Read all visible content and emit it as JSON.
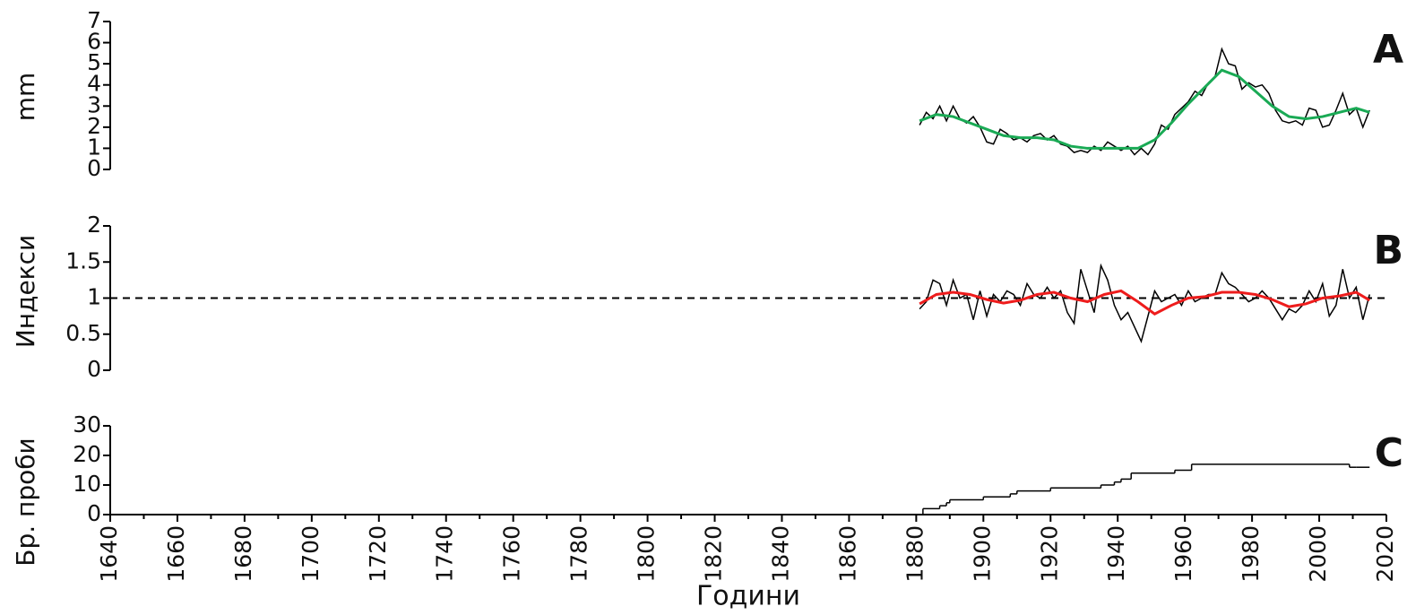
{
  "chart_data": [
    {
      "type": "line",
      "panel_label": "A",
      "ylabel": "mm",
      "xlim": [
        1640,
        2020
      ],
      "ylim": [
        0,
        7
      ],
      "yticks": [
        0,
        1,
        2,
        3,
        4,
        5,
        6,
        7
      ],
      "series": [
        {
          "color": "#000000",
          "x": [
            1881,
            1883,
            1885,
            1887,
            1889,
            1891,
            1893,
            1895,
            1897,
            1899,
            1901,
            1903,
            1905,
            1907,
            1909,
            1911,
            1913,
            1915,
            1917,
            1919,
            1921,
            1923,
            1925,
            1927,
            1929,
            1931,
            1933,
            1935,
            1937,
            1939,
            1941,
            1943,
            1945,
            1947,
            1949,
            1951,
            1953,
            1955,
            1957,
            1959,
            1961,
            1963,
            1965,
            1967,
            1969,
            1971,
            1973,
            1975,
            1977,
            1979,
            1981,
            1983,
            1985,
            1987,
            1989,
            1991,
            1993,
            1995,
            1997,
            1999,
            2001,
            2003,
            2005,
            2007,
            2009,
            2011,
            2013,
            2015
          ],
          "values": [
            2.1,
            2.7,
            2.4,
            3.0,
            2.3,
            3.0,
            2.4,
            2.2,
            2.5,
            2.0,
            1.3,
            1.2,
            1.9,
            1.7,
            1.4,
            1.5,
            1.3,
            1.6,
            1.7,
            1.4,
            1.6,
            1.2,
            1.1,
            0.8,
            0.9,
            0.8,
            1.1,
            0.9,
            1.3,
            1.1,
            0.9,
            1.1,
            0.7,
            1.0,
            0.7,
            1.2,
            2.1,
            1.9,
            2.6,
            2.9,
            3.2,
            3.7,
            3.5,
            4.1,
            4.4,
            5.7,
            5.0,
            4.9,
            3.8,
            4.1,
            3.9,
            4.0,
            3.6,
            2.8,
            2.3,
            2.2,
            2.3,
            2.1,
            2.9,
            2.8,
            2.0,
            2.1,
            2.8,
            3.6,
            2.6,
            2.9,
            2.0,
            2.8
          ]
        },
        {
          "color": "#1aaa55",
          "x": [
            1881,
            1886,
            1891,
            1896,
            1901,
            1906,
            1911,
            1916,
            1921,
            1926,
            1931,
            1936,
            1941,
            1946,
            1951,
            1956,
            1961,
            1966,
            1971,
            1976,
            1981,
            1986,
            1991,
            1996,
            2001,
            2006,
            2011,
            2015
          ],
          "values": [
            2.3,
            2.6,
            2.5,
            2.2,
            1.9,
            1.6,
            1.5,
            1.5,
            1.4,
            1.1,
            1.0,
            1.0,
            1.0,
            1.0,
            1.4,
            2.2,
            3.1,
            3.9,
            4.7,
            4.4,
            3.7,
            3.0,
            2.5,
            2.4,
            2.5,
            2.7,
            2.9,
            2.7
          ]
        }
      ]
    },
    {
      "type": "line",
      "panel_label": "B",
      "ylabel": "Индекси",
      "xlim": [
        1640,
        2020
      ],
      "ylim": [
        0,
        2
      ],
      "yticks": [
        0,
        0.5,
        1,
        1.5,
        2
      ],
      "reference_line": 1,
      "series": [
        {
          "color": "#000000",
          "x": [
            1881,
            1883,
            1885,
            1887,
            1889,
            1891,
            1893,
            1895,
            1897,
            1899,
            1901,
            1903,
            1905,
            1907,
            1909,
            1911,
            1913,
            1915,
            1917,
            1919,
            1921,
            1923,
            1925,
            1927,
            1929,
            1931,
            1933,
            1935,
            1937,
            1939,
            1941,
            1943,
            1945,
            1947,
            1949,
            1951,
            1953,
            1955,
            1957,
            1959,
            1961,
            1963,
            1965,
            1967,
            1969,
            1971,
            1973,
            1975,
            1977,
            1979,
            1981,
            1983,
            1985,
            1987,
            1989,
            1991,
            1993,
            1995,
            1997,
            1999,
            2001,
            2003,
            2005,
            2007,
            2009,
            2011,
            2013,
            2015
          ],
          "values": [
            0.85,
            0.95,
            1.25,
            1.2,
            0.9,
            1.25,
            1.0,
            1.05,
            0.7,
            1.1,
            0.75,
            1.05,
            0.95,
            1.1,
            1.05,
            0.9,
            1.2,
            1.05,
            1.0,
            1.15,
            1.0,
            1.1,
            0.8,
            0.65,
            1.4,
            1.1,
            0.8,
            1.45,
            1.25,
            0.9,
            0.7,
            0.8,
            0.6,
            0.4,
            0.75,
            1.1,
            0.95,
            1.0,
            1.05,
            0.9,
            1.1,
            0.95,
            1.0,
            1.05,
            1.05,
            1.35,
            1.2,
            1.15,
            1.05,
            0.95,
            1.0,
            1.1,
            1.0,
            0.85,
            0.7,
            0.85,
            0.8,
            0.9,
            1.1,
            0.95,
            1.2,
            0.75,
            0.9,
            1.4,
            1.0,
            1.15,
            0.7,
            1.05
          ]
        },
        {
          "color": "#ee1c1c",
          "x": [
            1881,
            1886,
            1891,
            1896,
            1901,
            1906,
            1911,
            1916,
            1921,
            1926,
            1931,
            1936,
            1941,
            1946,
            1951,
            1956,
            1961,
            1966,
            1971,
            1976,
            1981,
            1986,
            1991,
            1996,
            2001,
            2006,
            2011,
            2015
          ],
          "values": [
            0.92,
            1.05,
            1.08,
            1.05,
            0.98,
            0.93,
            0.97,
            1.05,
            1.08,
            1.0,
            0.95,
            1.05,
            1.1,
            0.95,
            0.78,
            0.9,
            1.0,
            1.02,
            1.08,
            1.08,
            1.05,
            0.98,
            0.88,
            0.92,
            1.0,
            1.03,
            1.08,
            0.97
          ]
        }
      ]
    },
    {
      "type": "step",
      "panel_label": "C",
      "ylabel": "Бр. проби",
      "xlabel": "Години",
      "xlim": [
        1640,
        2020
      ],
      "ylim": [
        0,
        30
      ],
      "yticks": [
        0,
        10,
        20,
        30
      ],
      "xticks": [
        1640,
        1660,
        1680,
        1700,
        1720,
        1740,
        1760,
        1780,
        1800,
        1820,
        1840,
        1860,
        1880,
        1900,
        1920,
        1940,
        1960,
        1980,
        2000,
        2020
      ],
      "xminorticks": [
        1650,
        1670,
        1690,
        1710,
        1730,
        1750,
        1770,
        1790,
        1810,
        1830,
        1850,
        1870,
        1890,
        1910,
        1930,
        1950,
        1970,
        1990,
        2010
      ],
      "series": [
        {
          "color": "#000000",
          "x": [
            1881,
            1882,
            1887,
            1889,
            1890,
            1900,
            1908,
            1910,
            1920,
            1935,
            1939,
            1941,
            1944,
            1957,
            1962,
            2009,
            2011,
            2015
          ],
          "values": [
            0,
            2,
            3,
            4,
            5,
            6,
            7,
            8,
            9,
            10,
            11,
            12,
            14,
            15,
            17,
            16,
            16,
            16
          ]
        }
      ]
    }
  ]
}
